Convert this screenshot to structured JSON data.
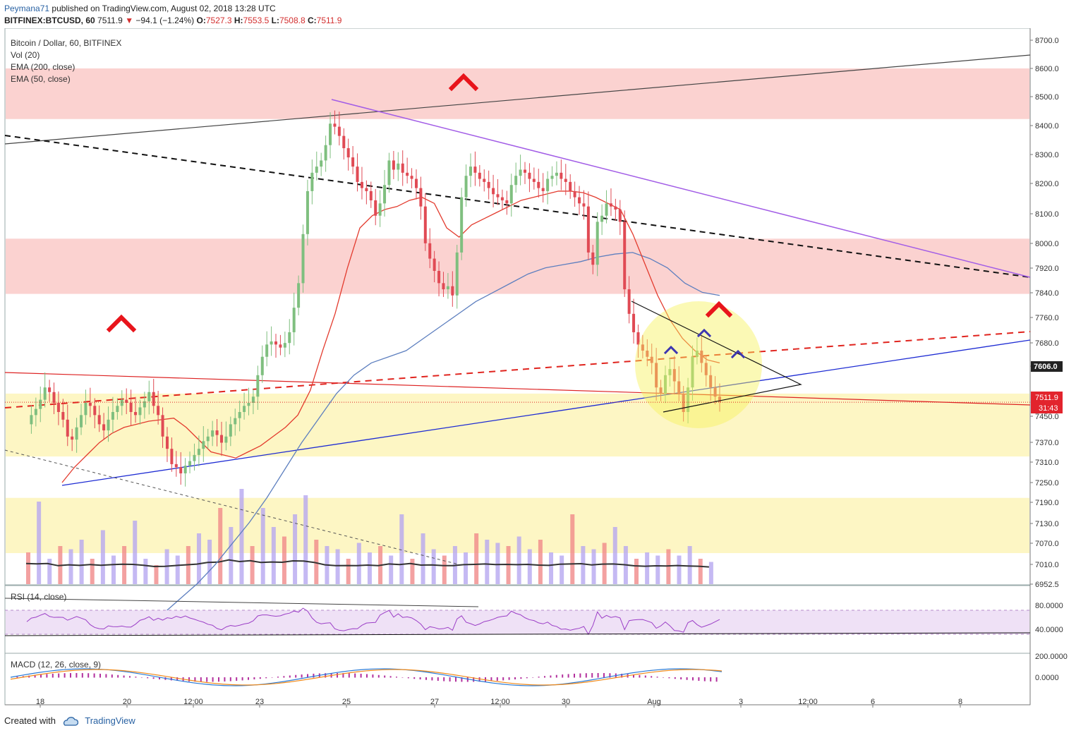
{
  "header": {
    "author": "Peymana71",
    "published_text": "published on TradingView.com, August 02, 2018 13:28 UTC",
    "symbol": "BITFINEX:BTCUSD, 60",
    "last": "7511.9",
    "change": "−94.1 (−1.24%)",
    "open_label": "O:",
    "open": "7527.3",
    "high_label": "H:",
    "high": "7553.5",
    "low_label": "L:",
    "low": "7508.8",
    "close_label": "C:",
    "close": "7511.9"
  },
  "legend": {
    "series": "Bitcoin / Dollar, 60, BITFINEX",
    "vol": "Vol (20)",
    "ema200": "EMA (200, close)",
    "ema50": "EMA (50, close)"
  },
  "rsi_label": "RSI (14, close)",
  "macd_label": "MACD (12, 26, close, 9)",
  "footer": {
    "created_with": "Created with",
    "brand": "TradingView"
  },
  "colors": {
    "up": "#a4d2a4",
    "down": "#e04a54",
    "ema50": "#e33b2e",
    "ema200": "#5d7fbf",
    "resistance_zone": "#fbd2d0",
    "support_zone": "#fdf6c4",
    "rsi": "#9c3fc7",
    "purple_line": "#a25de6",
    "blue_line": "#1d2bd3",
    "marker_red": "#e8141b",
    "marker_blue": "#3c36b0"
  },
  "chart_data": {
    "type": "line",
    "title": "Bitcoin / Dollar, 60, BITFINEX",
    "price_axis": {
      "ticks": [
        8700,
        8600,
        8500,
        8400,
        8300,
        8200,
        8100,
        8000,
        7920,
        7840,
        7760,
        7680,
        7606,
        7450,
        7370,
        7310,
        7250,
        7190,
        7130,
        7070,
        7010,
        6952.5
      ],
      "tick_labels": [
        "8700.0",
        "8600.0",
        "8500.0",
        "8400.0",
        "8300.0",
        "8200.0",
        "8100.0",
        "8000.0",
        "7920.0",
        "7840.0",
        "7760.0",
        "7680.0",
        "7606.0",
        "7450.0",
        "7370.0",
        "7310.0",
        "7250.0",
        "7190.0",
        "7130.0",
        "7070.0",
        "7010.0",
        "6952.5"
      ],
      "last_price": 7511.9,
      "last_price_label": "7511.9",
      "countdown_label": "31:43",
      "highlight_price": 7606.0,
      "highlight_label": "7606.0"
    },
    "time_axis": {
      "labels": [
        "18",
        "20",
        "12:00",
        "23",
        "25",
        "27",
        "12:00",
        "30",
        "Aug",
        "3",
        "12:00",
        "6",
        "8"
      ]
    },
    "rsi_axis": {
      "labels": [
        "80.0000",
        "40.0000"
      ]
    },
    "macd_axis": {
      "labels": [
        "200.0000",
        "0.0000"
      ]
    },
    "price_series": [
      7440,
      7470,
      7490,
      7520,
      7560,
      7545,
      7510,
      7480,
      7455,
      7400,
      7390,
      7430,
      7470,
      7510,
      7500,
      7470,
      7440,
      7420,
      7455,
      7480,
      7500,
      7520,
      7510,
      7480,
      7470,
      7495,
      7515,
      7545,
      7500,
      7470,
      7400,
      7360,
      7310,
      7300,
      7280,
      7305,
      7320,
      7340,
      7360,
      7385,
      7400,
      7420,
      7405,
      7380,
      7400,
      7440,
      7460,
      7480,
      7500,
      7510,
      7530,
      7600,
      7660,
      7700,
      7710,
      7700,
      7690,
      7705,
      7740,
      7820,
      7900,
      8060,
      8200,
      8260,
      8280,
      8300,
      8350,
      8420,
      8410,
      8380,
      8340,
      8310,
      8280,
      8230,
      8210,
      8200,
      8170,
      8120,
      8160,
      8220,
      8300,
      8270,
      8290,
      8260,
      8250,
      8240,
      8210,
      8150,
      8030,
      7980,
      7940,
      7900,
      7880,
      7890,
      7860,
      8000,
      8180,
      8250,
      8280,
      8260,
      8240,
      8230,
      8210,
      8190,
      8180,
      8170,
      8160,
      8220,
      8250,
      8270,
      8260,
      8240,
      8230,
      8210,
      8200,
      8240,
      8250,
      8260,
      8240,
      8230,
      8200,
      8180,
      8160,
      8150,
      8000,
      7960,
      8100,
      8120,
      8160,
      8150,
      8140,
      8100,
      7880,
      7800,
      7740,
      7700,
      7680,
      7660,
      7640,
      7560,
      7540,
      7600,
      7620,
      7580,
      7540,
      7480,
      7560,
      7660,
      7680,
      7640,
      7600,
      7560,
      7530,
      7512
    ],
    "ema50_series": [
      7250,
      7300,
      7340,
      7380,
      7410,
      7430,
      7440,
      7450,
      7455,
      7460,
      7430,
      7390,
      7350,
      7340,
      7330,
      7350,
      7370,
      7400,
      7430,
      7470,
      7550,
      7680,
      7800,
      7950,
      8080,
      8120,
      8140,
      8150,
      8170,
      8180,
      8160,
      8080,
      8050,
      8090,
      8110,
      8130,
      8150,
      8170,
      8180,
      8190,
      8200,
      8200,
      8195,
      8180,
      8160,
      8140,
      8060,
      7960,
      7860,
      7780,
      7720,
      7680,
      7650,
      7640
    ],
    "ema200_series": [
      6820,
      6870,
      6920,
      6980,
      7050,
      7120,
      7200,
      7290,
      7380,
      7460,
      7540,
      7600,
      7640,
      7660,
      7680,
      7720,
      7760,
      7800,
      7840,
      7870,
      7900,
      7930,
      7950,
      7960,
      7970,
      7985,
      7995,
      8000,
      7980,
      7950,
      7900,
      7870,
      7860
    ],
    "volume_series": [
      50,
      130,
      40,
      60,
      55,
      70,
      40,
      85,
      45,
      60,
      100,
      40,
      30,
      55,
      45,
      60,
      80,
      70,
      120,
      90,
      150,
      60,
      120,
      90,
      75,
      110,
      140,
      70,
      60,
      55,
      40,
      65,
      50,
      60,
      45,
      110,
      40,
      80,
      55,
      45,
      60,
      50,
      80,
      70,
      65,
      60,
      75,
      55,
      70,
      50,
      45,
      110,
      60,
      55,
      65,
      90,
      60,
      40,
      50,
      45,
      55,
      45,
      60,
      40,
      35
    ],
    "annotations": [
      "red up-chevron markers",
      "blue up-chevron markers",
      "yellow highlight circle",
      "resistance zones (pink)",
      "support zones (yellow)",
      "descending purple trendline",
      "ascending blue trendline",
      "dashed black trendline",
      "dashed red trendline",
      "symmetrical triangle"
    ]
  }
}
